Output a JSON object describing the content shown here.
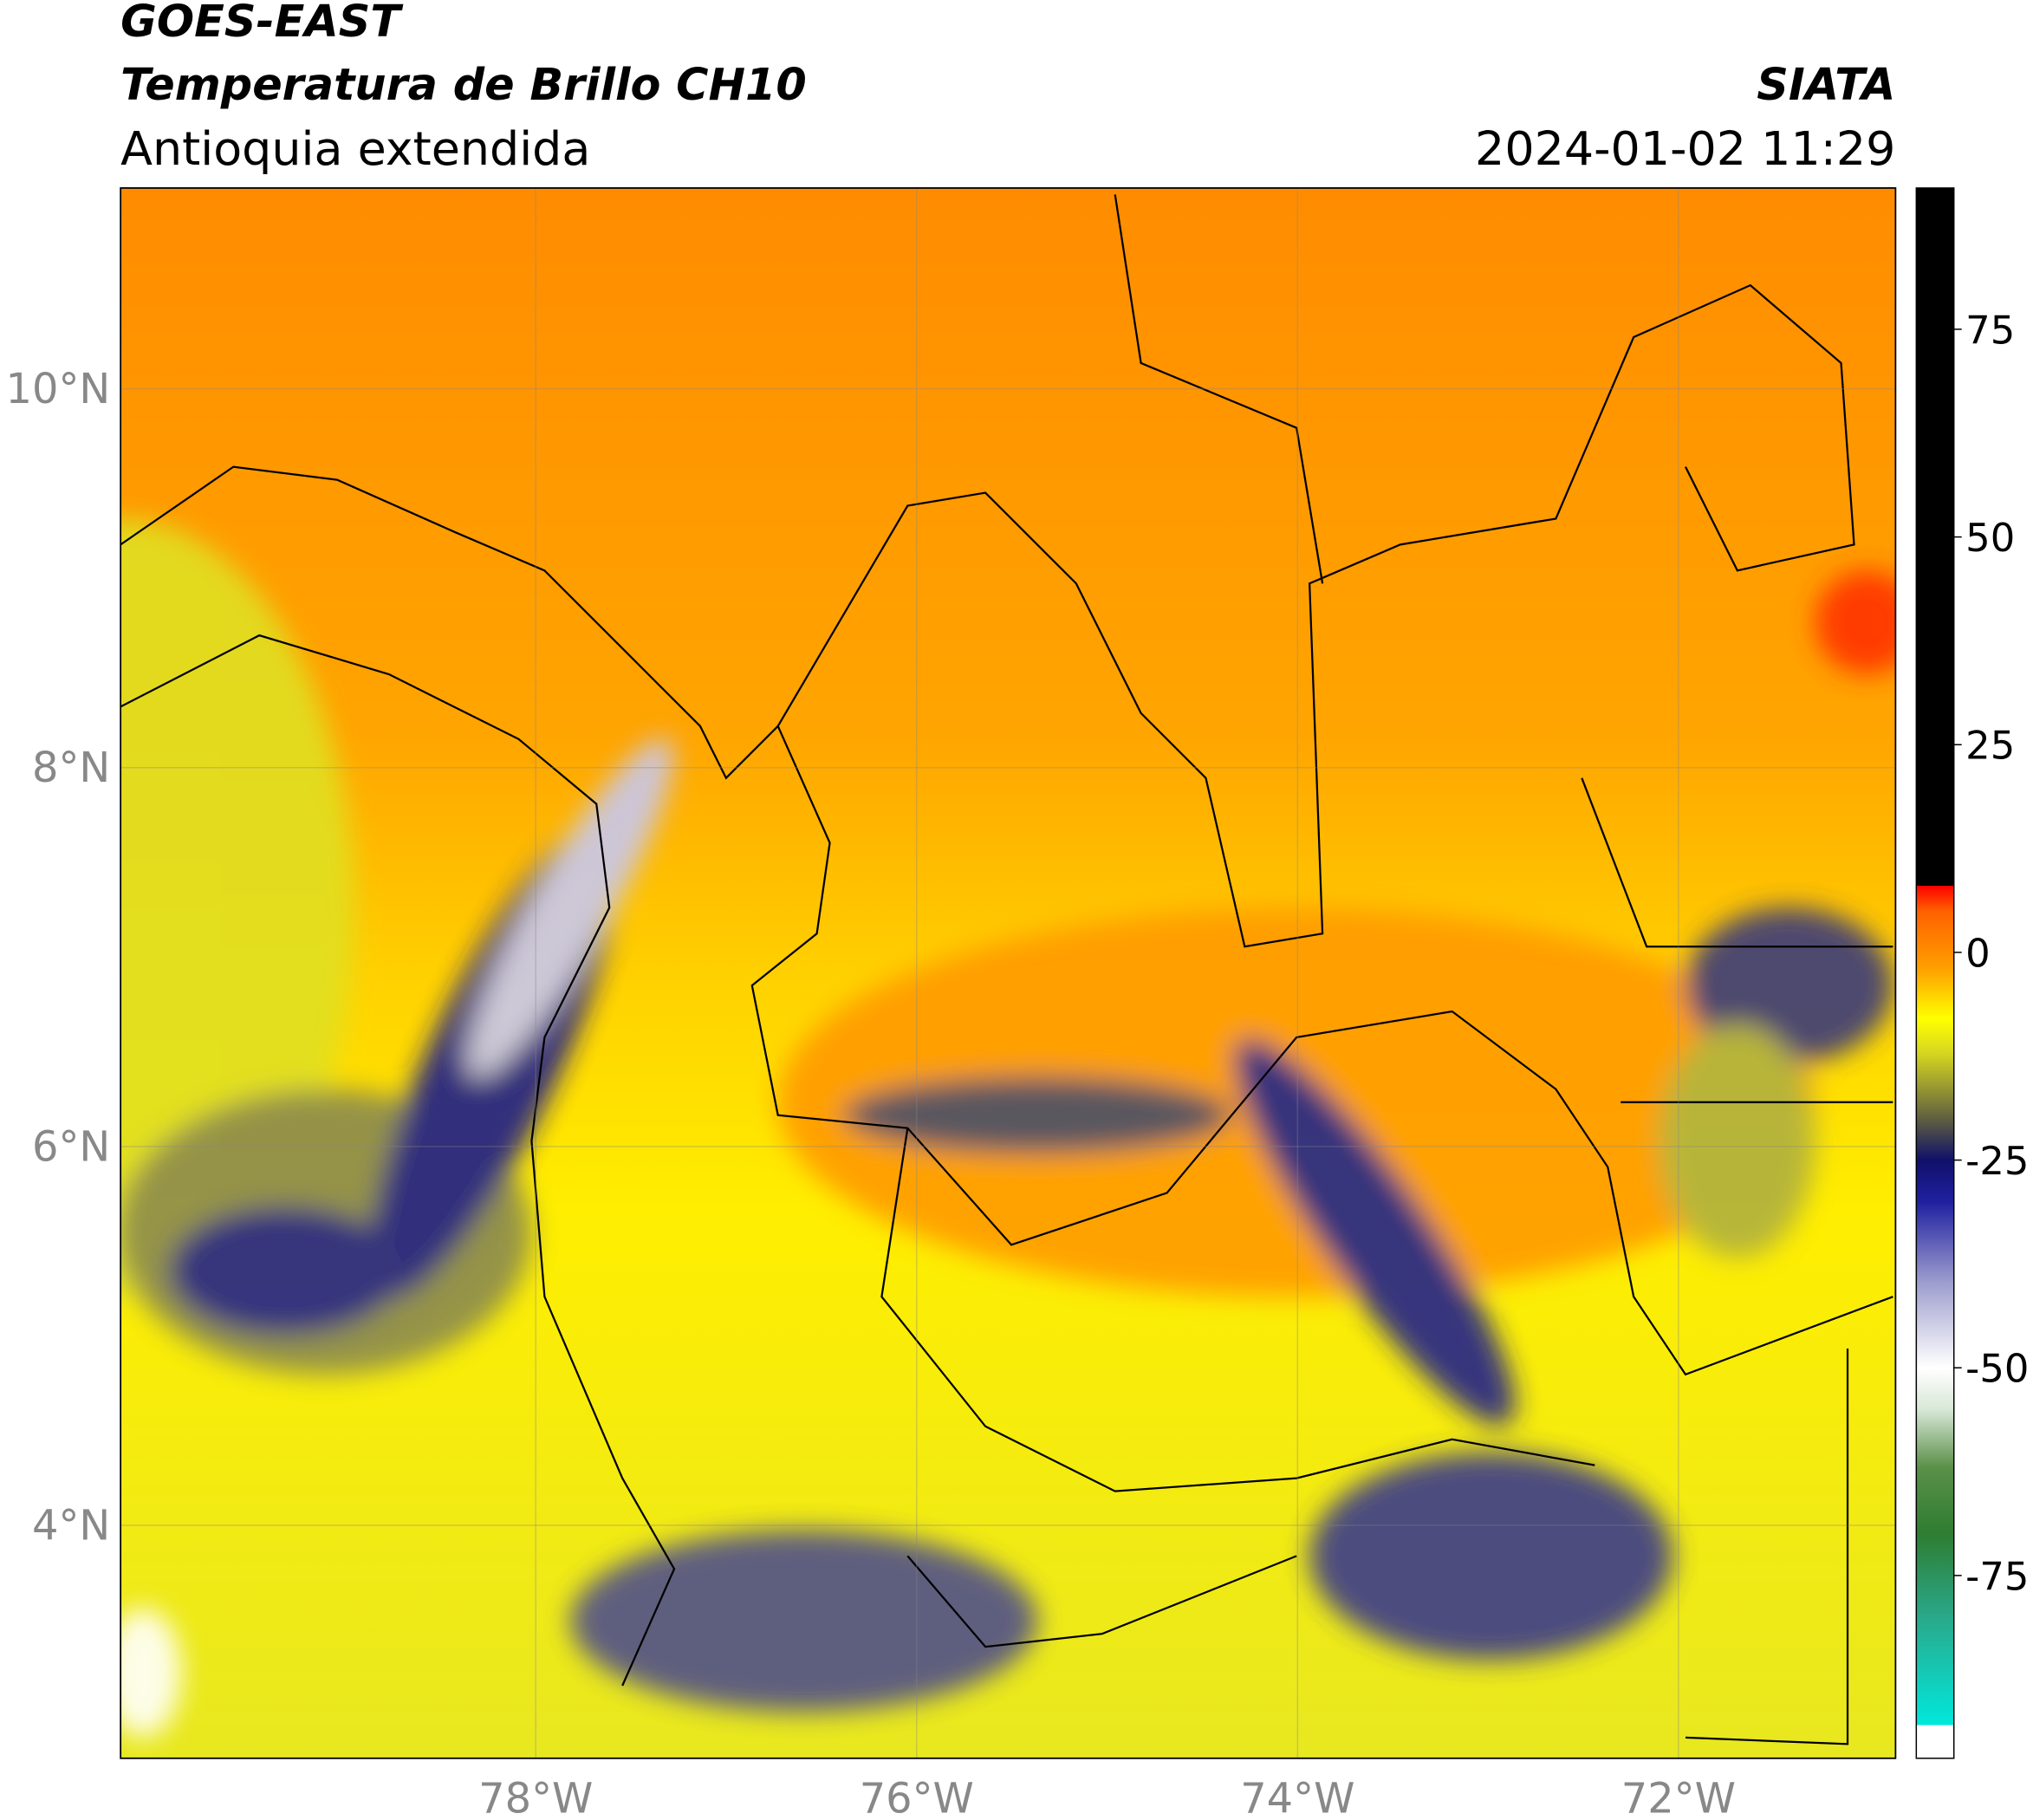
{
  "header": {
    "satellite": "GOES-EAST",
    "product": "Temperatura de Brillo CH10",
    "region": "Antioquia extendida",
    "agency": "SIATA",
    "datetime": "2024-01-02 11:29"
  },
  "map": {
    "lon_lim": [
      -80.18,
      -70.86
    ],
    "lat_lim": [
      2.77,
      11.06
    ],
    "lon_ticks": [
      {
        "value": -78,
        "label": "78°W"
      },
      {
        "value": -76,
        "label": "76°W"
      },
      {
        "value": -74,
        "label": "74°W"
      },
      {
        "value": -72,
        "label": "72°W"
      }
    ],
    "lat_ticks": [
      {
        "value": 10,
        "label": "10°N"
      },
      {
        "value": 8,
        "label": "8°N"
      },
      {
        "value": 6,
        "label": "6°N"
      },
      {
        "value": 4,
        "label": "4°N"
      }
    ]
  },
  "colorbar": {
    "lim": [
      -97,
      92
    ],
    "ticks": [
      75,
      50,
      25,
      0,
      -25,
      -50,
      -75
    ],
    "stops": [
      {
        "value": -97,
        "color": "#ffffff"
      },
      {
        "value": -93,
        "color": "#ffffff"
      },
      {
        "value": -93,
        "color": "#00e8dc"
      },
      {
        "value": -80,
        "color": "#2aa88a"
      },
      {
        "value": -70,
        "color": "#2e7d32"
      },
      {
        "value": -62,
        "color": "#5a9048"
      },
      {
        "value": -55,
        "color": "#d8e8d8"
      },
      {
        "value": -50,
        "color": "#ffffff"
      },
      {
        "value": -40,
        "color": "#a0a0d0"
      },
      {
        "value": -30,
        "color": "#2020a0"
      },
      {
        "value": -25,
        "color": "#10106a"
      },
      {
        "value": -20,
        "color": "#606040"
      },
      {
        "value": -12,
        "color": "#d8d820"
      },
      {
        "value": -8,
        "color": "#ffff00"
      },
      {
        "value": -2,
        "color": "#ffa000"
      },
      {
        "value": 5,
        "color": "#ff6000"
      },
      {
        "value": 8,
        "color": "#ff0000"
      },
      {
        "value": 8,
        "color": "#000000"
      },
      {
        "value": 92,
        "color": "#000000"
      }
    ]
  }
}
